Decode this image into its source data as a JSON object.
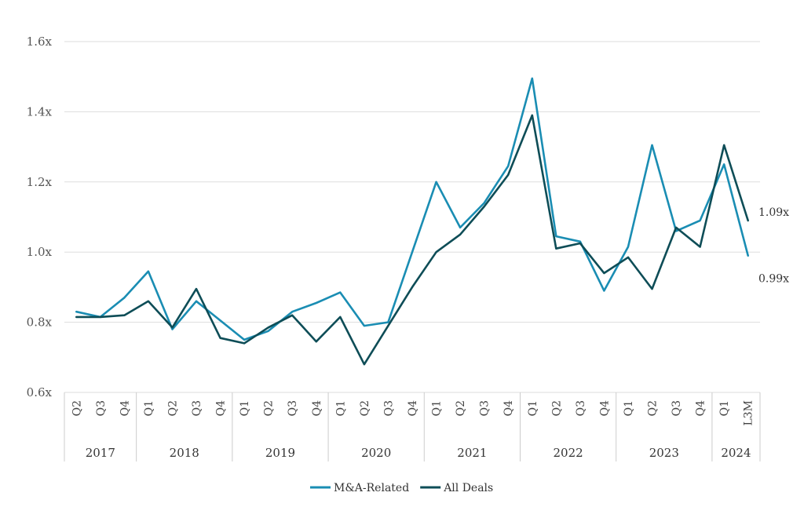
{
  "chart_data": {
    "type": "line",
    "quarters": [
      "Q2",
      "Q3",
      "Q4",
      "Q1",
      "Q2",
      "Q3",
      "Q4",
      "Q1",
      "Q2",
      "Q3",
      "Q4",
      "Q1",
      "Q2",
      "Q3",
      "Q4",
      "Q1",
      "Q2",
      "Q3",
      "Q4",
      "Q1",
      "Q2",
      "Q3",
      "Q4",
      "Q1",
      "Q2",
      "Q3",
      "Q4",
      "Q1",
      "L3M"
    ],
    "year_groups": [
      {
        "label": "2017",
        "count": 3
      },
      {
        "label": "2018",
        "count": 4
      },
      {
        "label": "2019",
        "count": 4
      },
      {
        "label": "2020",
        "count": 4
      },
      {
        "label": "2021",
        "count": 4
      },
      {
        "label": "2022",
        "count": 4
      },
      {
        "label": "2023",
        "count": 4
      },
      {
        "label": "2024",
        "count": 2
      }
    ],
    "y_ticks": [
      "0.6x",
      "0.8x",
      "1.0x",
      "1.2x",
      "1.4x",
      "1.6x"
    ],
    "ylim": [
      0.6,
      1.6
    ],
    "series": [
      {
        "name": "M&A-Related",
        "color": "#1a8db3",
        "values": [
          0.83,
          0.815,
          0.87,
          0.945,
          0.78,
          0.86,
          0.805,
          0.75,
          0.775,
          0.83,
          0.855,
          0.885,
          0.79,
          0.8,
          1.0,
          1.2,
          1.07,
          1.14,
          1.245,
          1.495,
          1.045,
          1.03,
          0.89,
          1.015,
          1.305,
          1.06,
          1.09,
          1.25,
          0.99
        ],
        "end_label": "0.99x"
      },
      {
        "name": "All Deals",
        "color": "#0e4d57",
        "values": [
          0.815,
          0.815,
          0.82,
          0.86,
          0.785,
          0.895,
          0.755,
          0.74,
          0.785,
          0.82,
          0.745,
          0.815,
          0.68,
          0.79,
          0.9,
          1.0,
          1.05,
          1.13,
          1.22,
          1.39,
          1.01,
          1.025,
          0.94,
          0.985,
          0.895,
          1.07,
          1.015,
          1.305,
          1.09
        ],
        "end_label": "1.09x"
      }
    ],
    "legend_position": "bottom-center",
    "grid": true
  }
}
